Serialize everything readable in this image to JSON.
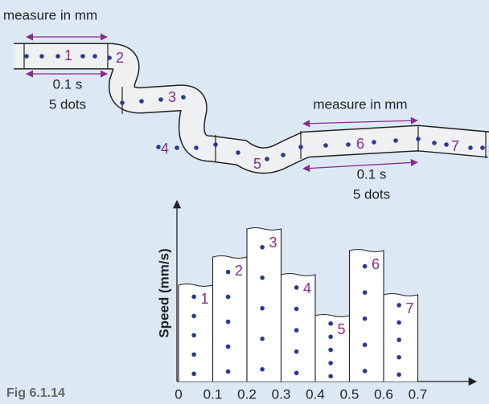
{
  "tape": {
    "segment_labels": [
      "1",
      "2",
      "3",
      "4",
      "5",
      "6",
      "7"
    ],
    "measure_labels": [
      "measure in mm",
      "measure in mm"
    ],
    "interval_labels": [
      {
        "time": "0.1 s",
        "dots": "5 dots"
      },
      {
        "time": "0.1 s",
        "dots": "5 dots"
      }
    ]
  },
  "chart": {
    "y_label": "Speed (mm/s)",
    "x_ticks": [
      0,
      0.1,
      0.2,
      0.3,
      0.4,
      0.5,
      0.6,
      0.7
    ],
    "bar_labels": [
      "1",
      "2",
      "3",
      "4",
      "5",
      "6",
      "7"
    ]
  },
  "figure_label": "Fig 6.1.14"
}
